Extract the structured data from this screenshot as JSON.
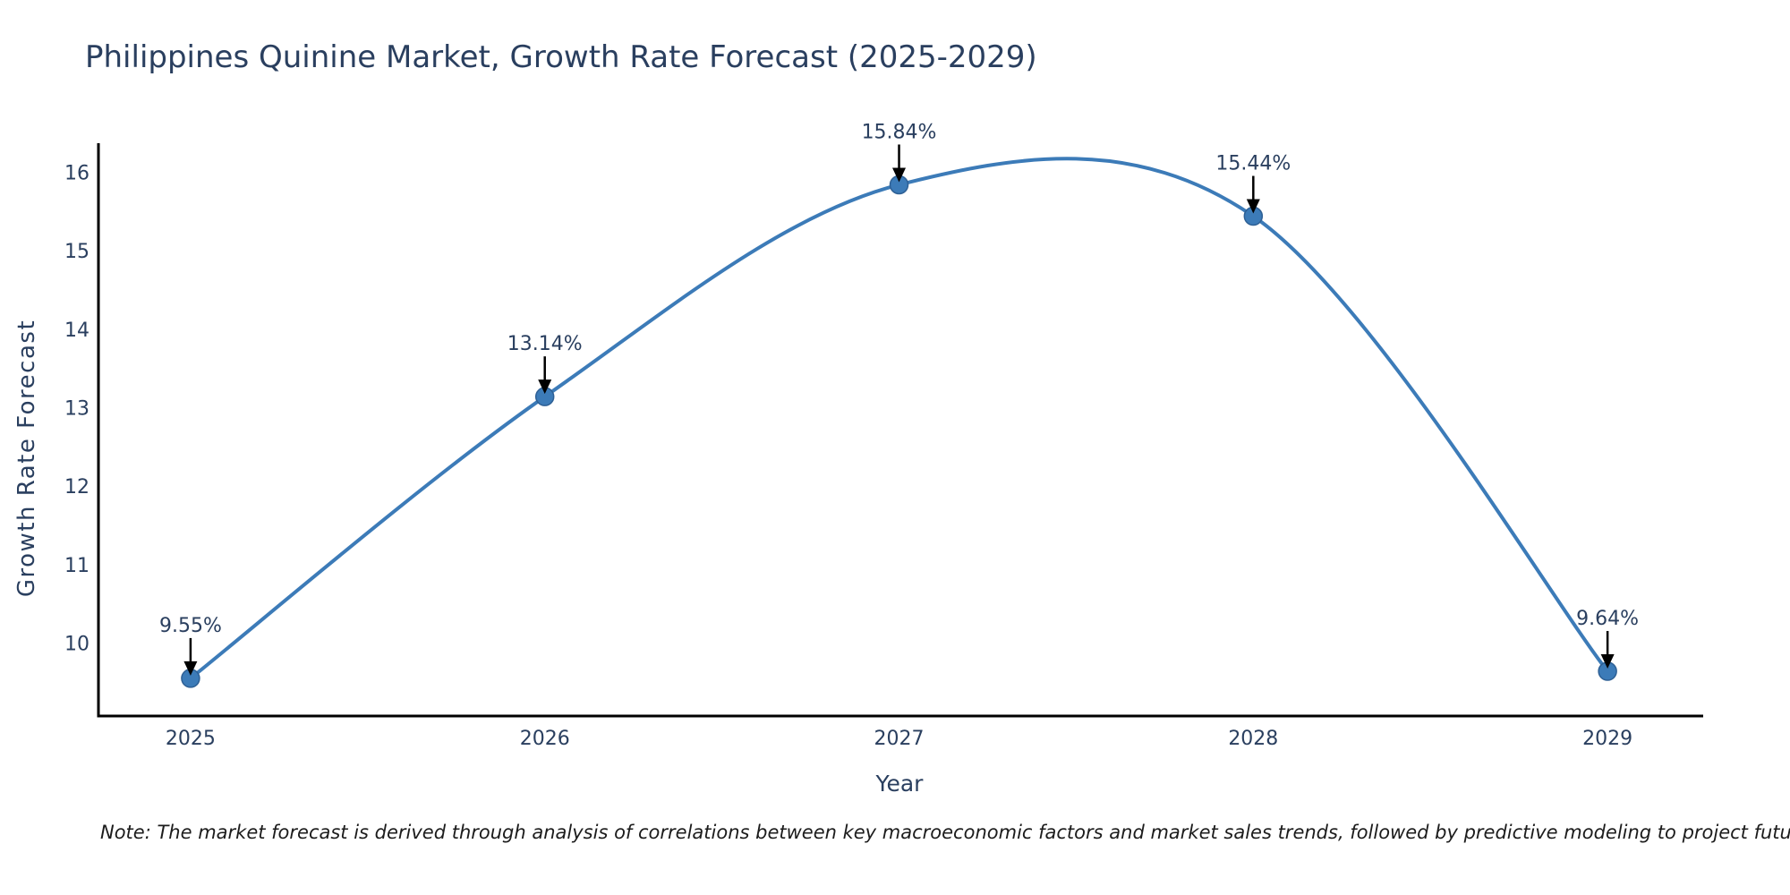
{
  "page": {
    "note": "Note: The market forecast is derived through analysis of correlations between key macroeconomic factors and market sales trends, followed by predictive modeling to project future sales"
  },
  "chart_data": {
    "type": "line",
    "title": "Philippines Quinine Market, Growth Rate Forecast (2025-2029)",
    "xlabel": "Year",
    "ylabel": "Growth Rate Forecast",
    "x": [
      2025,
      2026,
      2027,
      2028,
      2029
    ],
    "x_tick_labels": [
      "2025",
      "2026",
      "2027",
      "2028",
      "2029"
    ],
    "values": [
      9.55,
      13.14,
      15.84,
      15.44,
      9.64
    ],
    "annotations": [
      "9.55%",
      "13.14%",
      "15.84%",
      "15.44%",
      "9.64%"
    ],
    "y_ticks": [
      10,
      11,
      12,
      13,
      14,
      15,
      16
    ],
    "ylim": [
      9.07,
      16.37
    ],
    "xlim": [
      2024.74,
      2029.27
    ],
    "curve": "spline",
    "grid": false,
    "legend_position": "none",
    "line_color": "#3c7bb8",
    "marker_color": "#3c7bb8",
    "marker_edge_color": "#2e6095",
    "arrow_color": "#000000",
    "text_color": "#2a3f5f",
    "axis_color": "#000000"
  }
}
